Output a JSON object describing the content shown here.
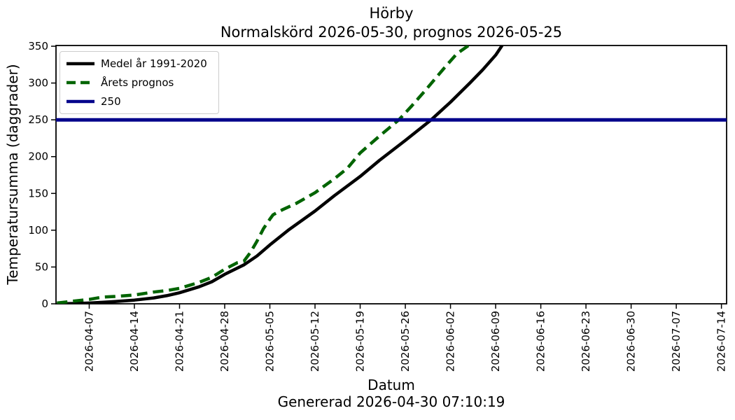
{
  "figure": {
    "title": "Hörby",
    "subtitle": "Normalskörd 2026-05-30, prognos 2026-05-25",
    "xlabel": "Datum",
    "ylabel": "Temperatursumma (daggrader)",
    "footer": "Genererad 2026-04-30 07:10:19"
  },
  "colors": {
    "mean_line": "#000000",
    "forecast_line": "#006400",
    "threshold_line": "#00008B",
    "axis": "#000000",
    "legend_border": "#cccccc",
    "background": "#ffffff"
  },
  "chart_data": {
    "type": "line",
    "title": "Hörby",
    "subtitle": "Normalskörd 2026-05-30, prognos 2026-05-25",
    "xlabel": "Datum",
    "ylabel": "Temperatursumma (daggrader)",
    "footer": "Genererad 2026-04-30 07:10:19",
    "grid": false,
    "legend_position": "upper-left",
    "x_unit": "days since 2026-04-01",
    "xlim": [
      0.85,
      104.8
    ],
    "ylim": [
      0,
      351
    ],
    "yticks": [
      0,
      50,
      100,
      150,
      200,
      250,
      300,
      350
    ],
    "xticks": [
      {
        "day": 6,
        "label": "2026-04-07"
      },
      {
        "day": 13,
        "label": "2026-04-14"
      },
      {
        "day": 20,
        "label": "2026-04-21"
      },
      {
        "day": 27,
        "label": "2026-04-28"
      },
      {
        "day": 34,
        "label": "2026-05-05"
      },
      {
        "day": 41,
        "label": "2026-05-12"
      },
      {
        "day": 48,
        "label": "2026-05-19"
      },
      {
        "day": 55,
        "label": "2026-05-26"
      },
      {
        "day": 62,
        "label": "2026-06-02"
      },
      {
        "day": 69,
        "label": "2026-06-09"
      },
      {
        "day": 76,
        "label": "2026-06-16"
      },
      {
        "day": 83,
        "label": "2026-06-23"
      },
      {
        "day": 90,
        "label": "2026-06-30"
      },
      {
        "day": 97,
        "label": "2026-07-07"
      },
      {
        "day": 104,
        "label": "2026-07-14"
      }
    ],
    "series": [
      {
        "name": "Medel år 1991-2020",
        "color": "#000000",
        "style": "solid",
        "width": 4.5,
        "points": [
          [
            1,
            0
          ],
          [
            4,
            0.5
          ],
          [
            6,
            1
          ],
          [
            8,
            2
          ],
          [
            10,
            3
          ],
          [
            13,
            5
          ],
          [
            16,
            8
          ],
          [
            18,
            11
          ],
          [
            20,
            15
          ],
          [
            23,
            23
          ],
          [
            25,
            30
          ],
          [
            27,
            40
          ],
          [
            30,
            53
          ],
          [
            32,
            65
          ],
          [
            34,
            80
          ],
          [
            37,
            101
          ],
          [
            41,
            126
          ],
          [
            44,
            147
          ],
          [
            48,
            173
          ],
          [
            51,
            195
          ],
          [
            55,
            222
          ],
          [
            59,
            250
          ],
          [
            62,
            274
          ],
          [
            65,
            300
          ],
          [
            67,
            318
          ],
          [
            69,
            338
          ],
          [
            70,
            351
          ]
        ]
      },
      {
        "name": "Årets prognos",
        "color": "#006400",
        "style": "dashed",
        "width": 4.5,
        "points": [
          [
            1,
            1
          ],
          [
            3,
            3
          ],
          [
            5,
            5
          ],
          [
            6,
            6
          ],
          [
            8,
            9
          ],
          [
            10,
            10
          ],
          [
            13,
            12
          ],
          [
            16,
            16
          ],
          [
            18,
            18
          ],
          [
            20,
            21
          ],
          [
            23,
            29
          ],
          [
            25,
            36
          ],
          [
            27,
            47
          ],
          [
            29,
            56
          ],
          [
            30,
            58
          ],
          [
            31,
            70
          ],
          [
            32,
            85
          ],
          [
            33,
            102
          ],
          [
            34,
            115
          ],
          [
            34.5,
            121
          ],
          [
            36,
            128
          ],
          [
            38,
            136
          ],
          [
            41,
            151
          ],
          [
            44,
            170
          ],
          [
            46,
            184
          ],
          [
            48,
            205
          ],
          [
            51,
            228
          ],
          [
            54,
            250
          ],
          [
            56,
            269
          ],
          [
            58,
            289
          ],
          [
            61,
            320
          ],
          [
            63,
            340
          ],
          [
            64.8,
            351
          ]
        ]
      },
      {
        "name": "250",
        "color": "#00008B",
        "style": "solid",
        "width": 5,
        "points": [
          [
            0.85,
            250
          ],
          [
            104.8,
            250
          ]
        ]
      }
    ]
  }
}
